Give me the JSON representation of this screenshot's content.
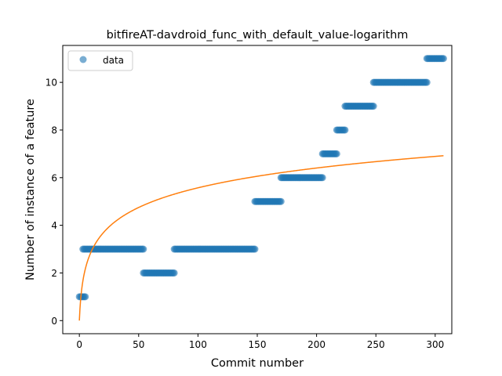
{
  "chart_data": {
    "type": "scatter",
    "title": "bitfireAT-davdroid_func_with_default_value-logarithm",
    "xlabel": "Commit number",
    "ylabel": "Number of instance of a feature",
    "xlim": [
      -14,
      314
    ],
    "ylim": [
      -0.55,
      11.55
    ],
    "xticks": [
      0,
      50,
      100,
      150,
      200,
      250,
      300
    ],
    "yticks": [
      0,
      2,
      4,
      6,
      8,
      10
    ],
    "grid": false,
    "legend": {
      "placement": "top-left",
      "entries": [
        "data"
      ]
    },
    "colors": {
      "points": "#1f77b4",
      "fit": "#ff7f0e"
    },
    "series": [
      {
        "name": "data",
        "kind": "scatter",
        "segments": [
          {
            "x_start": 0,
            "x_end": 5,
            "y": 1
          },
          {
            "x_start": 3,
            "x_end": 54,
            "y": 3
          },
          {
            "x_start": 54,
            "x_end": 80,
            "y": 2
          },
          {
            "x_start": 80,
            "x_end": 148,
            "y": 3
          },
          {
            "x_start": 148,
            "x_end": 170,
            "y": 5
          },
          {
            "x_start": 170,
            "x_end": 205,
            "y": 6
          },
          {
            "x_start": 205,
            "x_end": 217,
            "y": 7
          },
          {
            "x_start": 217,
            "x_end": 224,
            "y": 8
          },
          {
            "x_start": 224,
            "x_end": 248,
            "y": 9
          },
          {
            "x_start": 248,
            "x_end": 293,
            "y": 10
          },
          {
            "x_start": 293,
            "x_end": 307,
            "y": 11
          }
        ]
      },
      {
        "kind": "line",
        "fit": "logarithmic",
        "x_range": [
          0,
          307
        ],
        "points": [
          [
            0,
            0
          ],
          [
            2,
            1.3
          ],
          [
            5,
            2.2
          ],
          [
            10,
            3.0
          ],
          [
            20,
            3.75
          ],
          [
            50,
            4.75
          ],
          [
            100,
            5.55
          ],
          [
            150,
            6.0
          ],
          [
            200,
            6.38
          ],
          [
            250,
            6.67
          ],
          [
            307,
            6.92
          ]
        ]
      }
    ]
  }
}
